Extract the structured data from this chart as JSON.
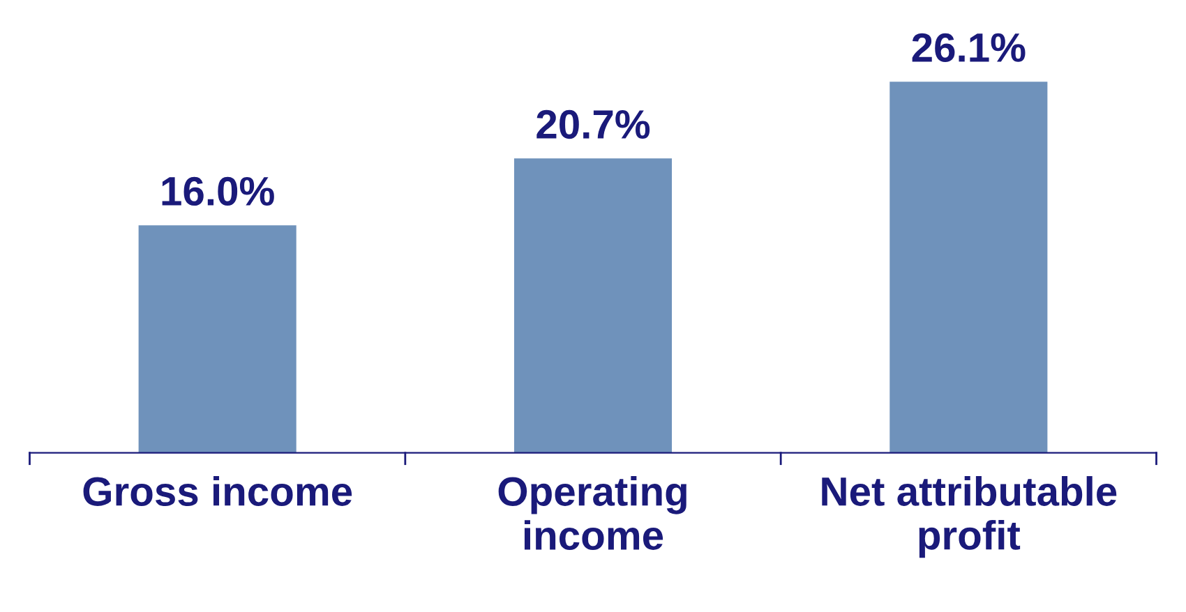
{
  "chart_data": {
    "type": "bar",
    "categories": [
      "Gross income",
      "Operating\nincome",
      "Net attributable\nprofit"
    ],
    "values": [
      16.0,
      20.7,
      26.1
    ],
    "value_labels": [
      "16.0%",
      "20.7%",
      "26.1%"
    ],
    "color": "#6f92bb",
    "grid": false,
    "legend": false
  }
}
